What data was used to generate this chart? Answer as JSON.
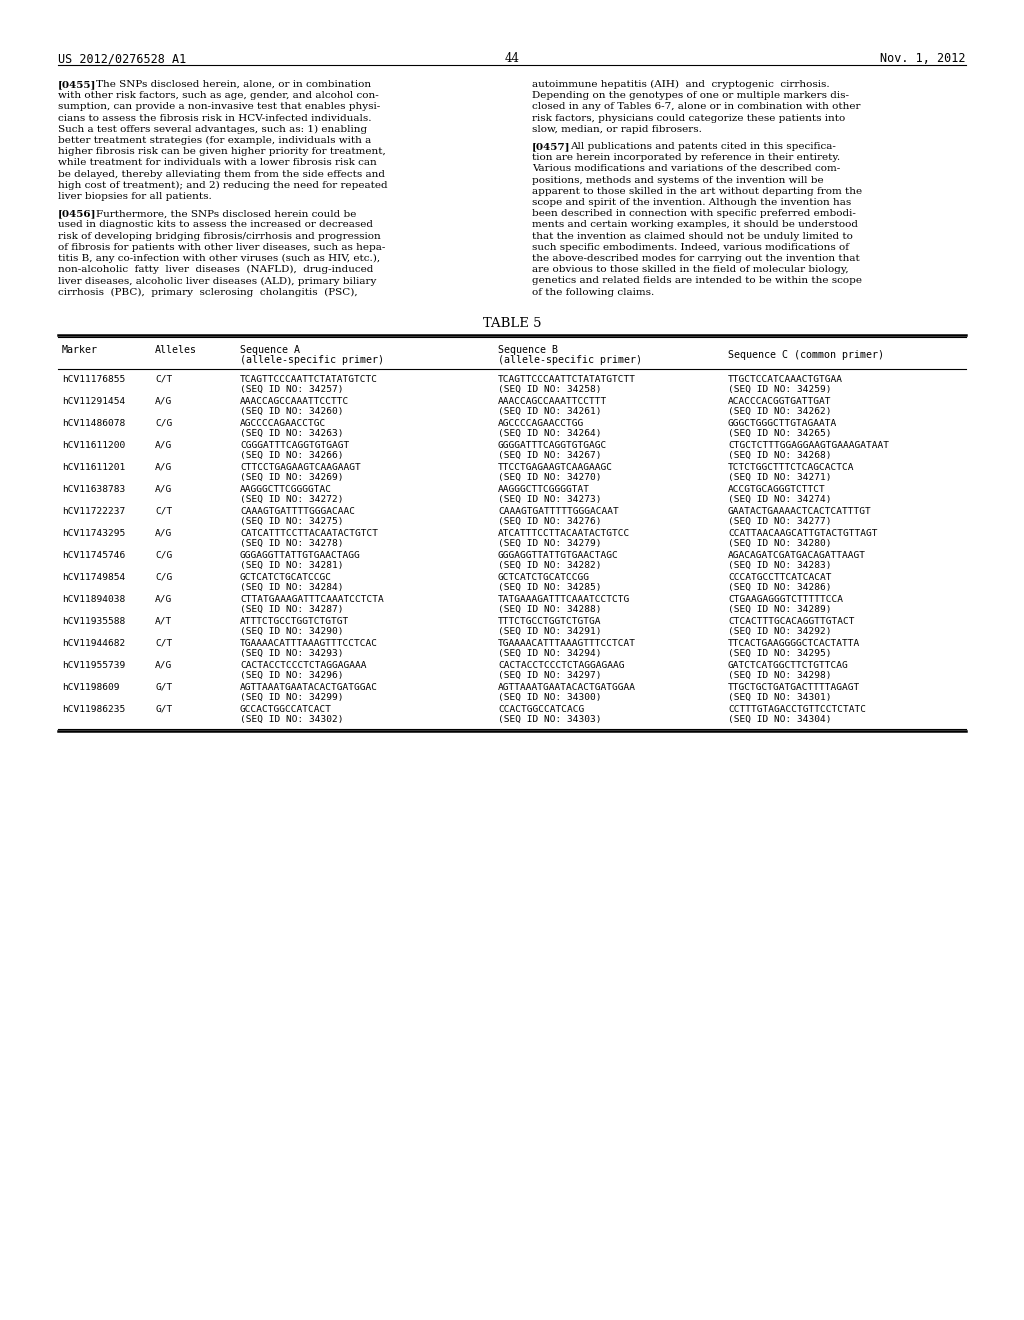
{
  "page_header_left": "US 2012/0276528 A1",
  "page_header_right": "Nov. 1, 2012",
  "page_number": "44",
  "para_455_title": "[0455]",
  "para_455_left": "The SNPs disclosed herein, alone, or in combination\nwith other risk factors, such as age, gender, and alcohol con-\nsumption, can provide a non-invasive test that enables physi-\ncians to assess the fibrosis risk in HCV-infected individuals.\nSuch a test offers several advantages, such as: 1) enabling\nbetter treatment strategies (for example, individuals with a\nhigher fibrosis risk can be given higher priority for treatment,\nwhile treatment for individuals with a lower fibrosis risk can\nbe delayed, thereby alleviating them from the side effects and\nhigh cost of treatment); and 2) reducing the need for repeated\nliver biopsies for all patients.",
  "para_456_title": "[0456]",
  "para_456_left": "Furthermore, the SNPs disclosed herein could be\nused in diagnostic kits to assess the increased or decreased\nrisk of developing bridging fibrosis/cirrhosis and progression\nof fibrosis for patients with other liver diseases, such as hepa-\ntitis B, any co-infection with other viruses (such as HIV, etc.),\nnon-alcoholic fatty liver diseases (NAFLD), drug-induced\nliver diseases, alcoholic liver diseases (ALD), primary biliary\ncirrhosis (PBC), primary sclerosing cholangitis (PSC),",
  "para_455_right": "autoimmune hepatitis (AIH) and cryptogenic cirrhosis.\nDepending on the genotypes of one or multiple markers dis-\nclosed in any of Tables 6-7, alone or in combination with other\nrisk factors, physicians could categorize these patients into\nslow, median, or rapid fibrosers.",
  "para_457_title": "[0457]",
  "para_457_right": "All publications and patents cited in this specifica-\ntion are herein incorporated by reference in their entirety.\nVarious modifications and variations of the described com-\npositions, methods and systems of the invention will be\napparent to those skilled in the art without departing from the\nscope and spirit of the invention. Although the invention has\nbeen described in connection with specific preferred embodi-\nments and certain working examples, it should be understood\nthat the invention as claimed should not be unduly limited to\nsuch specific embodiments. Indeed, various modifications of\nthe above-described modes for carrying out the invention that\nare obvious to those skilled in the field of molecular biology,\ngenetics and related fields are intended to be within the scope\nof the following claims.",
  "table_title": "TABLE 5",
  "table_headers": [
    "Marker",
    "Alleles",
    "Sequence A\n(allele-specific primer)",
    "Sequence B\n(allele-specific primer)",
    "Sequence C (common primer)"
  ],
  "table_rows": [
    [
      "hCV11176855",
      "C/T",
      "TCAGTTCCCAATTCTATATGTCTC\n(SEQ ID NO: 34257)",
      "TCAGTTCCCAATTCTATATGTCTT\n(SEQ ID NO: 34258)",
      "TTGCTCCATCAAACTGTGAA\n(SEQ ID NO: 34259)"
    ],
    [
      "hCV11291454",
      "A/G",
      "AAACCAGCCAAATTCCTTC\n(SEQ ID NO: 34260)",
      "AAACCAGCCAAATTCCTTT\n(SEQ ID NO: 34261)",
      "ACACCCACGGTGATTGAT\n(SEQ ID NO: 34262)"
    ],
    [
      "hCV11486078",
      "C/G",
      "AGCCCCAGAACCTGC\n(SEQ ID NO: 34263)",
      "AGCCCCAGAACCTGG\n(SEQ ID NO: 34264)",
      "GGGCTGGGCTTGTAGAATA\n(SEQ ID NO: 34265)"
    ],
    [
      "hCV11611200",
      "A/G",
      "CGGGATTTCAGGTGTGAGT\n(SEQ ID NO: 34266)",
      "GGGGATTTCAGGTGTGAGC\n(SEQ ID NO: 34267)",
      "CTGCTCTTTGGAGGAAGTGAAAGATAAT\n(SEQ ID NO: 34268)"
    ],
    [
      "hCV11611201",
      "A/G",
      "CTTCCTGAGAAGTCAAGAAGT\n(SEQ ID NO: 34269)",
      "TTCCTGAGAAGTCAAGAAGC\n(SEQ ID NO: 34270)",
      "TCTCTGGCTTTCTCAGCACTCA\n(SEQ ID NO: 34271)"
    ],
    [
      "hCV11638783",
      "A/G",
      "AAGGGCTTCGGGGTAC\n(SEQ ID NO: 34272)",
      "AAGGGCTTCGGGGTAT\n(SEQ ID NO: 34273)",
      "ACCGTGCAGGGTCTTCT\n(SEQ ID NO: 34274)"
    ],
    [
      "hCV11722237",
      "C/T",
      "CAAAGTGATTTTGGGACAAC\n(SEQ ID NO: 34275)",
      "CAAAGTGATTTTTGGGACAAT\n(SEQ ID NO: 34276)",
      "GAATACTGAAAACTCACTCATTTGT\n(SEQ ID NO: 34277)"
    ],
    [
      "hCV11743295",
      "A/G",
      "CATCATTTCCTTACAATACTGTCT\n(SEQ ID NO: 34278)",
      "ATCATTTCCTTACAATACTGTCC\n(SEQ ID NO: 34279)",
      "CCATTAACAAGCATTGTACTGTTAGT\n(SEQ ID NO: 34280)"
    ],
    [
      "hCV11745746",
      "C/G",
      "GGGAGGTTATTGTGAACTAGG\n(SEQ ID NO: 34281)",
      "GGGAGGTTATTGTGAACTAGC\n(SEQ ID NO: 34282)",
      "AGACAGATCGATGACAGATTAAGT\n(SEQ ID NO: 34283)"
    ],
    [
      "hCV11749854",
      "C/G",
      "GCTCATCTGCATCCGC\n(SEQ ID NO: 34284)",
      "GCTCATCTGCATCCGG\n(SEQ ID NO: 34285)",
      "CCCATGCCTTCATCACAT\n(SEQ ID NO: 34286)"
    ],
    [
      "hCV11894038",
      "A/G",
      "CTTATGAAAGATTTCAAATCCTCTA\n(SEQ ID NO: 34287)",
      "TATGAAAGATTTCAAATCCTCTG\n(SEQ ID NO: 34288)",
      "CTGAAGAGGGTCTTTTTCCA\n(SEQ ID NO: 34289)"
    ],
    [
      "hCV11935588",
      "A/T",
      "ATTTCTGCCTGGTCTGTGT\n(SEQ ID NO: 34290)",
      "TTTCTGCCTGGTCTGTGA\n(SEQ ID NO: 34291)",
      "CTCACTTTGCACAGGTTGTACT\n(SEQ ID NO: 34292)"
    ],
    [
      "hCV11944682",
      "C/T",
      "TGAAAACATTTAAAGTTTCCTCAC\n(SEQ ID NO: 34293)",
      "TGAAAACATTTAAAGTTTCCTCAT\n(SEQ ID NO: 34294)",
      "TTCACTGAAGGGGCTCACTATTA\n(SEQ ID NO: 34295)"
    ],
    [
      "hCV11955739",
      "A/G",
      "CACTACCTCCCTCTAGGAGAAA\n(SEQ ID NO: 34296)",
      "CACTACCTCCCTCTAGGAGAAG\n(SEQ ID NO: 34297)",
      "GATCTCATGGCTTCTGTTCAG\n(SEQ ID NO: 34298)"
    ],
    [
      "hCV1198609",
      "G/T",
      "AGTTAAATGAATACACTGATGGAC\n(SEQ ID NO: 34299)",
      "AGTTAAATGAATACACTGATGGAA\n(SEQ ID NO: 34300)",
      "TTGCTGCTGATGACTTTTAGAGT\n(SEQ ID NO: 34301)"
    ],
    [
      "hCV11986235",
      "G/T",
      "GCCACTGGCCATCACT\n(SEQ ID NO: 34302)",
      "CCACTGGCCATCACG\n(SEQ ID NO: 34303)",
      "CCTTTGTAGACCTGTTCCTCTATC\n(SEQ ID NO: 34304)"
    ]
  ],
  "bg_color": "#ffffff",
  "text_color": "#000000",
  "font_size_body": 7.5,
  "font_size_header": 7.8,
  "font_size_table": 7.0,
  "font_size_page_header": 8.5
}
